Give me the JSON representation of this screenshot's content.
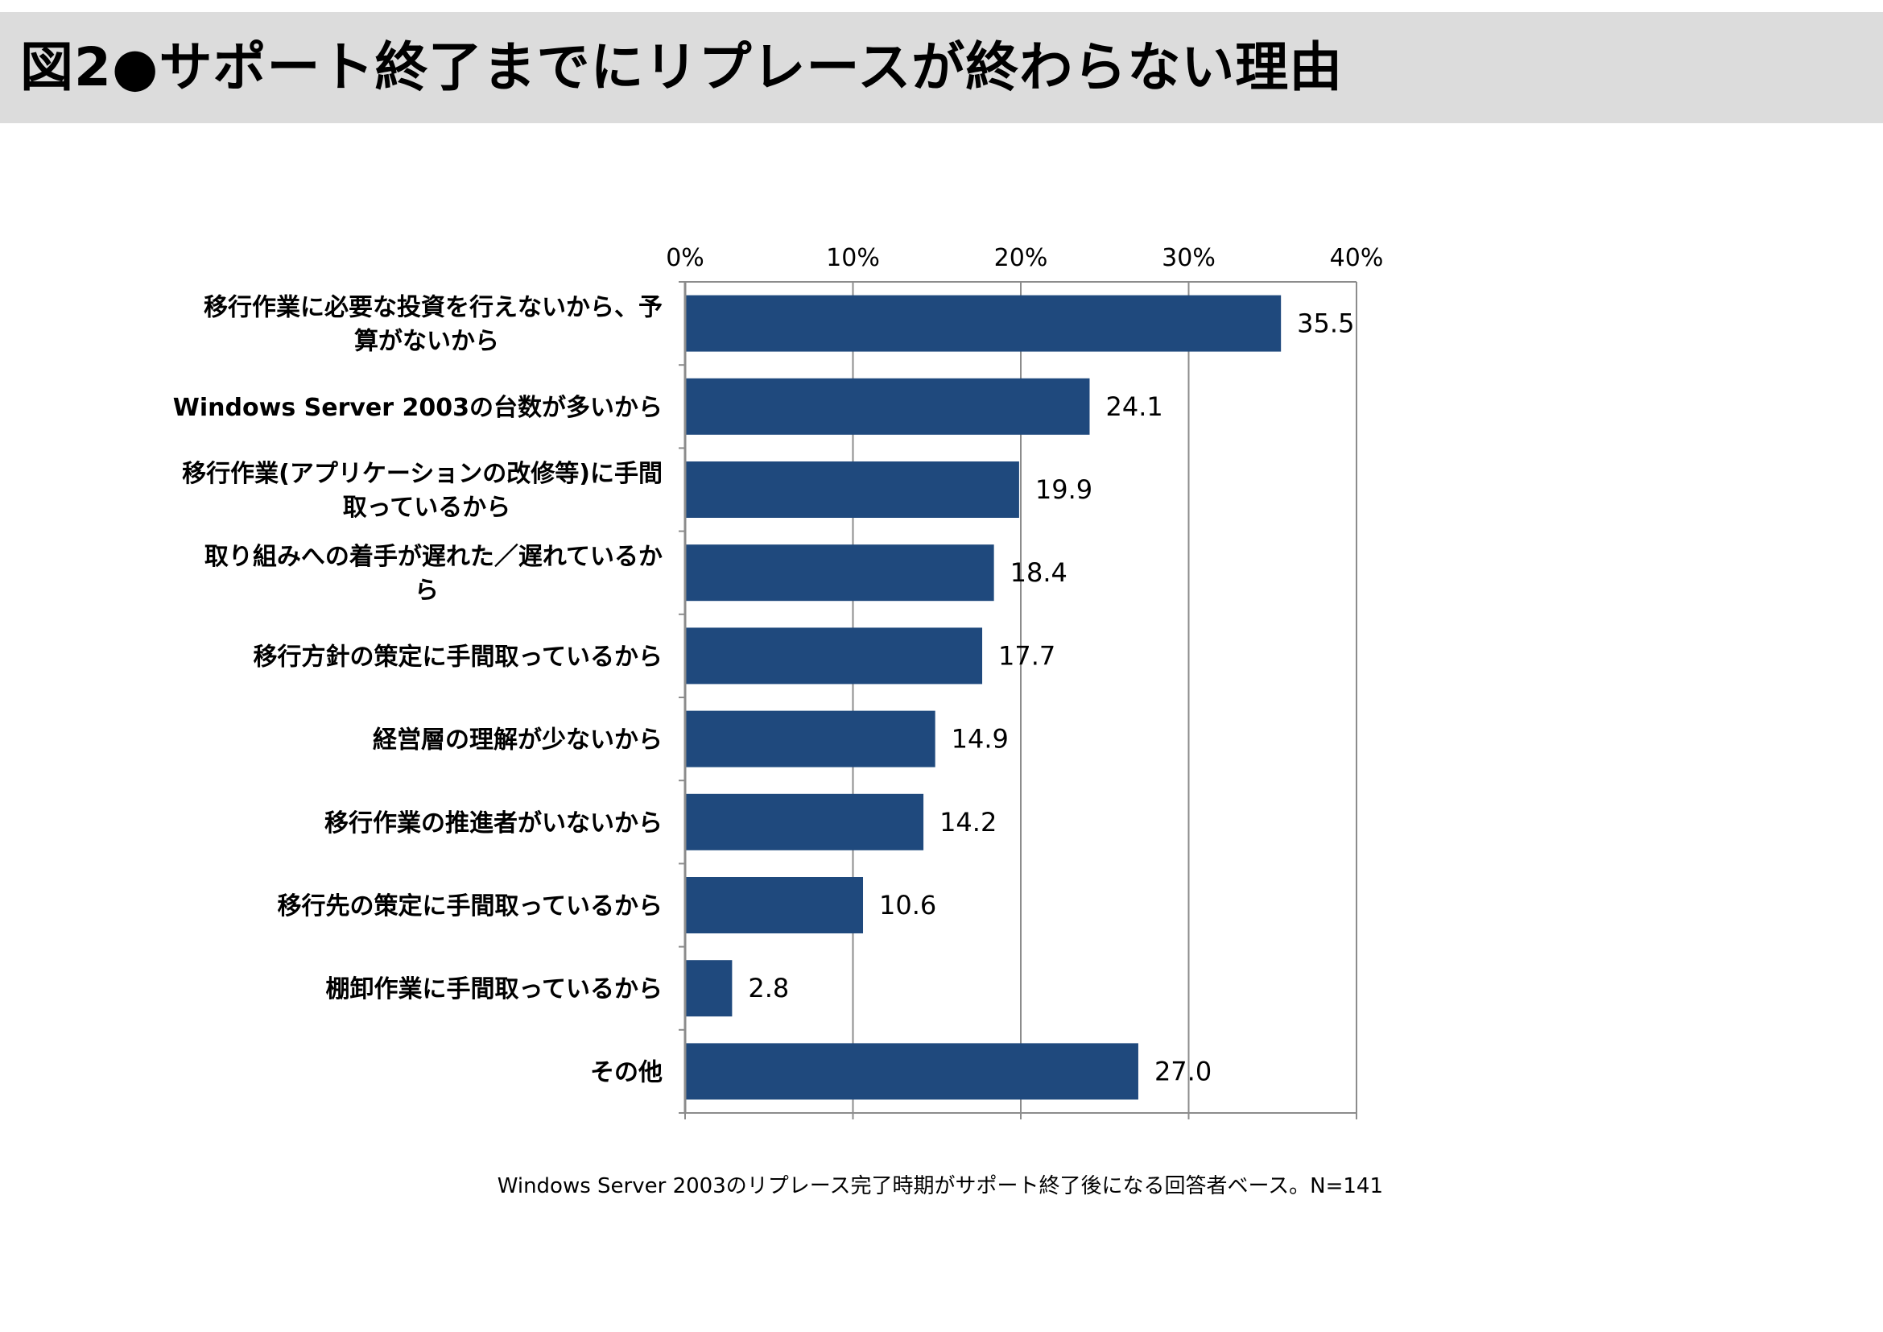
{
  "title": "図2●サポート終了までにリプレースが終わらない理由",
  "note": "Windows Server 2003のリプレース完了時期がサポート終了後になる回答者ベース。N=141",
  "colors": {
    "bar": "#1f497d",
    "title_band": "#dcdcdc",
    "axis": "#8c8c8c"
  },
  "chart_data": {
    "type": "bar",
    "orientation": "horizontal",
    "categories": [
      "移行作業に必要な投資を行えないから、予算がないから",
      "Windows Server 2003の台数が多いから",
      "移行作業(アプリケーションの改修等)に手間取っているから",
      "取り組みへの着手が遅れた／遅れているから",
      "移行方針の策定に手間取っているから",
      "経営層の理解が少ないから",
      "移行作業の推進者がいないから",
      "移行先の策定に手間取っているから",
      "棚卸作業に手間取っているから",
      "その他"
    ],
    "category_lines": [
      [
        "移行作業に必要な投資を行えないから、予",
        "算がないから"
      ],
      [
        "Windows Server 2003の台数が多いから"
      ],
      [
        "移行作業(アプリケーションの改修等)に手間",
        "取っているから"
      ],
      [
        "取り組みへの着手が遅れた／遅れているか",
        "ら"
      ],
      [
        "移行方針の策定に手間取っているから"
      ],
      [
        "経営層の理解が少ないから"
      ],
      [
        "移行作業の推進者がいないから"
      ],
      [
        "移行先の策定に手間取っているから"
      ],
      [
        "棚卸作業に手間取っているから"
      ],
      [
        "その他"
      ]
    ],
    "values": [
      35.5,
      24.1,
      19.9,
      18.4,
      17.7,
      14.9,
      14.2,
      10.6,
      2.8,
      27.0
    ],
    "value_labels": [
      "35.5",
      "24.1",
      "19.9",
      "18.4",
      "17.7",
      "14.9",
      "14.2",
      "10.6",
      "2.8",
      "27.0"
    ],
    "xlim": [
      0,
      40
    ],
    "xticks": [
      0,
      10,
      20,
      30,
      40
    ],
    "xtick_labels": [
      "0%",
      "10%",
      "20%",
      "30%",
      "40%"
    ],
    "x_axis_position": "top",
    "grid": true,
    "legend": "none"
  }
}
